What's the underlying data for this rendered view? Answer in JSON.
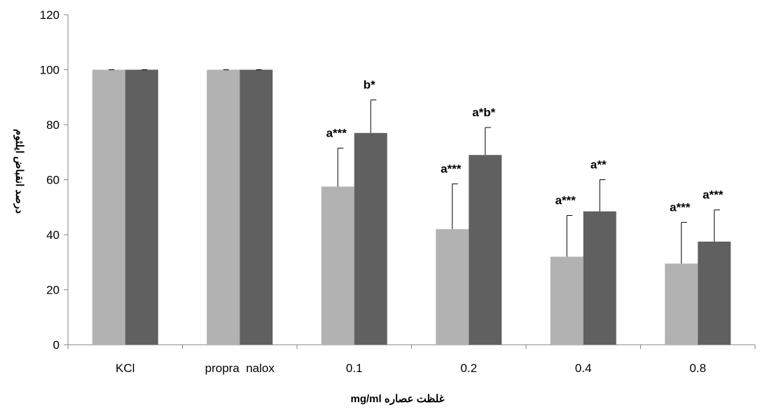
{
  "chart_data": {
    "type": "bar",
    "title": "",
    "xlabel": "غلظت عصاره  mg/ml",
    "ylabel": "درصد انقباض ایلئوم",
    "ylim": [
      0,
      120
    ],
    "yticks": [
      "0",
      "20",
      "40",
      "60",
      "80",
      "100",
      "120"
    ],
    "categories": [
      "KCl",
      "propra  nalox",
      "0.1",
      "0.2",
      "0.4",
      "0.8"
    ],
    "grid": false,
    "legend": "none",
    "series": [
      {
        "color": "#b2b2b2",
        "values": [
          100,
          100,
          57.5,
          42,
          32,
          29.5
        ],
        "errors": [
          0,
          0,
          14,
          16.5,
          15,
          15
        ],
        "annotations": [
          "",
          "",
          "a***",
          "a***",
          "a***",
          "a***"
        ]
      },
      {
        "color": "#606060",
        "values": [
          100,
          100,
          77,
          69,
          48.5,
          37.5
        ],
        "errors": [
          0,
          0,
          12,
          10,
          11.5,
          11.5
        ],
        "annotations": [
          "",
          "",
          "b*",
          "a*b*",
          "a**",
          "a***"
        ]
      }
    ]
  }
}
